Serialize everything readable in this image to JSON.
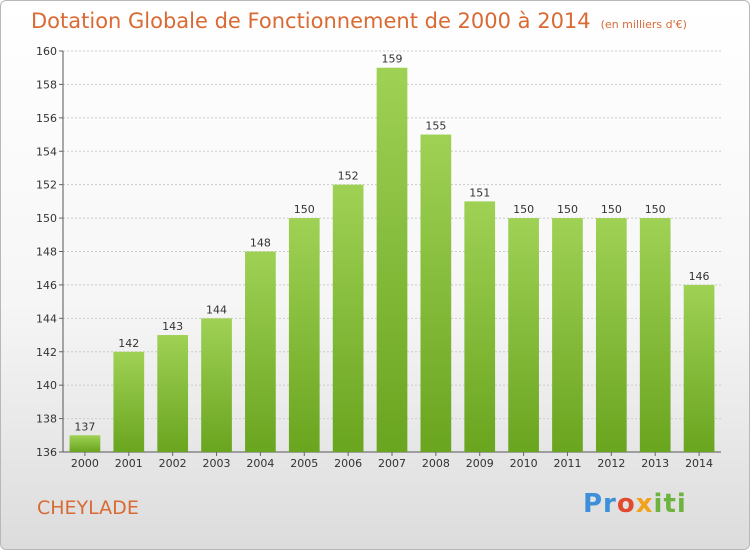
{
  "title": "Dotation Globale de Fonctionnement de 2000 à 2014",
  "subtitle": "(en milliers d'€)",
  "city": "CHEYLADE",
  "logo": {
    "p": "Pr",
    "o": "o",
    "x": "x",
    "iti": "iti"
  },
  "colors": {
    "bar": "#8bc34a",
    "title": "#d96a34",
    "grid": "#cccccc"
  },
  "chart_data": {
    "type": "bar",
    "title": "Dotation Globale de Fonctionnement de 2000 à 2014",
    "subtitle": "(en milliers d'€)",
    "xlabel": "",
    "ylabel": "",
    "categories": [
      "2000",
      "2001",
      "2002",
      "2003",
      "2004",
      "2005",
      "2006",
      "2007",
      "2008",
      "2009",
      "2010",
      "2011",
      "2012",
      "2013",
      "2014"
    ],
    "values": [
      137,
      142,
      143,
      144,
      148,
      150,
      152,
      159,
      155,
      151,
      150,
      150,
      150,
      150,
      146
    ],
    "ylim": [
      136,
      160
    ],
    "yticks": [
      136,
      138,
      140,
      142,
      144,
      146,
      148,
      150,
      152,
      154,
      156,
      158,
      160
    ],
    "grid": true,
    "data_labels": true
  }
}
